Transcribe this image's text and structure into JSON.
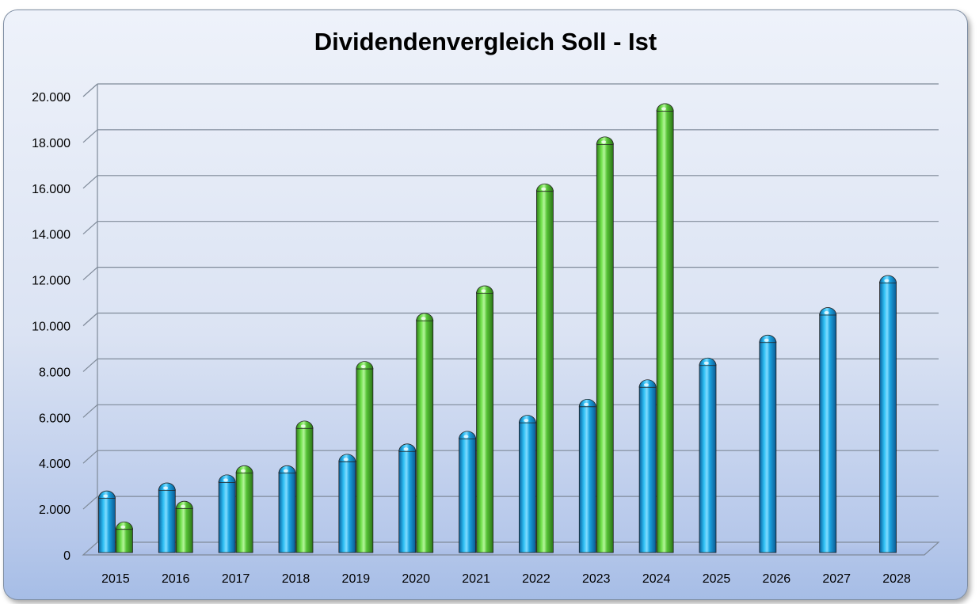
{
  "chart_data": {
    "type": "bar",
    "title": "Dividendenvergleich Soll - Ist",
    "xlabel": "",
    "ylabel": "",
    "ylim": [
      0,
      20000
    ],
    "yticks": [
      0,
      2000,
      4000,
      6000,
      8000,
      10000,
      12000,
      14000,
      16000,
      18000,
      20000
    ],
    "ytick_labels": [
      "0",
      "2.000",
      "4.000",
      "6.000",
      "8.000",
      "10.000",
      "12.000",
      "14.000",
      "16.000",
      "18.000",
      "20.000"
    ],
    "categories": [
      "2015",
      "2016",
      "2017",
      "2018",
      "2019",
      "2020",
      "2021",
      "2022",
      "2023",
      "2024",
      "2025",
      "2026",
      "2027",
      "2028"
    ],
    "series": [
      {
        "color": "#1aa3e0",
        "values": [
          2500,
          2850,
          3200,
          3600,
          4100,
          4550,
          5100,
          5800,
          6500,
          7350,
          8300,
          9300,
          10500,
          11900
        ]
      },
      {
        "color": "#5cc93c",
        "values": [
          1150,
          2050,
          3600,
          5550,
          8150,
          10250,
          11450,
          15900,
          17950,
          19400,
          null,
          null,
          null,
          null
        ]
      }
    ],
    "grid": true,
    "legend": "none",
    "style": "3d-cylinder"
  }
}
